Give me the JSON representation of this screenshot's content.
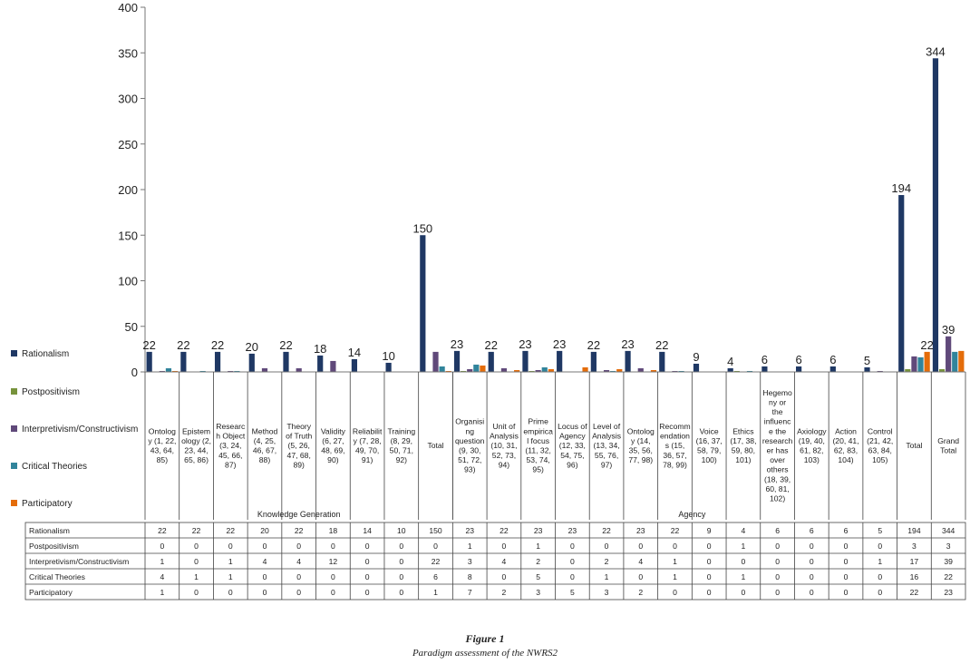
{
  "caption": {
    "label": "Figure 1",
    "title": "Paradigm assessment of the NWRS2"
  },
  "chart_data": {
    "type": "bar",
    "ylim": [
      0,
      400
    ],
    "yticks": [
      0,
      50,
      100,
      150,
      200,
      250,
      300,
      350,
      400
    ],
    "grid": false,
    "legend_position": "left",
    "groups": [
      {
        "label": "Knowledge Generation",
        "count": 9
      },
      {
        "label": "Agency",
        "count": 14
      }
    ],
    "categories": [
      "Ontolog y (1, 22, 43, 64, 85)",
      "Epistem ology (2, 23, 44, 65, 86)",
      "Researc h Object (3, 24, 45, 66, 87)",
      "Method (4, 25, 46, 67, 88)",
      "Theory of Truth (5, 26, 47, 68, 89)",
      "Validity (6, 27, 48, 69, 90)",
      "Reliabilit y (7, 28, 49, 70, 91)",
      "Training (8, 29, 50, 71, 92)",
      "Total",
      "Organisi ng question (9, 30, 51, 72, 93)",
      "Unit of Analysis (10, 31, 52, 73, 94)",
      "Prime empirica l focus (11, 32, 53, 74, 95)",
      "Locus of Agency (12, 33, 54, 75, 96)",
      "Level of Analysis (13, 34, 55, 76, 97)",
      "Ontolog y (14, 35, 56, 77, 98)",
      "Recomm endation s (15, 36, 57, 78, 99)",
      "Voice (16, 37, 58, 79, 100)",
      "Ethics (17, 38, 59, 80, 101)",
      "Hegemo ny or the influenc e the research er has over others (18, 39, 60, 81, 102)",
      "Axiology (19, 40, 61, 82, 103)",
      "Action (20, 41, 62, 83, 104)",
      "Control (21, 42, 63, 84, 105)",
      "Total",
      "Grand Total"
    ],
    "category_lines": [
      [
        "Ontolog",
        "y (1, 22,",
        "43, 64,",
        "85)"
      ],
      [
        "Epistem",
        "ology (2,",
        "23, 44,",
        "65, 86)"
      ],
      [
        "Researc",
        "h Object",
        "(3, 24,",
        "45, 66,",
        "87)"
      ],
      [
        "Method",
        "(4, 25,",
        "46, 67,",
        "88)"
      ],
      [
        "Theory",
        "of Truth",
        "(5, 26,",
        "47, 68,",
        "89)"
      ],
      [
        "Validity",
        "(6, 27,",
        "48, 69,",
        "90)"
      ],
      [
        "Reliabilit",
        "y (7, 28,",
        "49, 70,",
        "91)"
      ],
      [
        "Training",
        "(8, 29,",
        "50, 71,",
        "92)"
      ],
      [
        "Total"
      ],
      [
        "Organisi",
        "ng",
        "question",
        "(9, 30,",
        "51, 72,",
        "93)"
      ],
      [
        "Unit of",
        "Analysis",
        "(10, 31,",
        "52, 73,",
        "94)"
      ],
      [
        "Prime",
        "empirica",
        "l focus",
        "(11, 32,",
        "53, 74,",
        "95)"
      ],
      [
        "Locus of",
        "Agency",
        "(12, 33,",
        "54, 75,",
        "96)"
      ],
      [
        "Level of",
        "Analysis",
        "(13, 34,",
        "55, 76,",
        "97)"
      ],
      [
        "Ontolog",
        "y (14,",
        "35, 56,",
        "77, 98)"
      ],
      [
        "Recomm",
        "endation",
        "s (15,",
        "36, 57,",
        "78, 99)"
      ],
      [
        "Voice",
        "(16, 37,",
        "58, 79,",
        "100)"
      ],
      [
        "Ethics",
        "(17, 38,",
        "59, 80,",
        "101)"
      ],
      [
        "Hegemo",
        "ny or",
        "the",
        "influenc",
        "e the",
        "research",
        "er has",
        "over",
        "others",
        "(18, 39,",
        "60, 81,",
        "102)"
      ],
      [
        "Axiology",
        "(19, 40,",
        "61, 82,",
        "103)"
      ],
      [
        "Action",
        "(20, 41,",
        "62, 83,",
        "104)"
      ],
      [
        "Control",
        "(21, 42,",
        "63, 84,",
        "105)"
      ],
      [
        "Total"
      ],
      [
        "Grand",
        "Total"
      ]
    ],
    "series": [
      {
        "name": "Rationalism",
        "color": "#1f3864",
        "values": [
          22,
          22,
          22,
          20,
          22,
          18,
          14,
          10,
          150,
          23,
          22,
          23,
          23,
          22,
          23,
          22,
          9,
          4,
          6,
          6,
          6,
          5,
          194,
          344
        ]
      },
      {
        "name": "Postpositivism",
        "color": "#77933c",
        "values": [
          0,
          0,
          0,
          0,
          0,
          0,
          0,
          0,
          0,
          1,
          0,
          1,
          0,
          0,
          0,
          0,
          0,
          1,
          0,
          0,
          0,
          0,
          3,
          3
        ]
      },
      {
        "name": "Interpretivism/Constructivism",
        "color": "#60497a",
        "values": [
          1,
          0,
          1,
          4,
          4,
          12,
          0,
          0,
          22,
          3,
          4,
          2,
          0,
          2,
          4,
          1,
          0,
          0,
          0,
          0,
          0,
          1,
          17,
          39
        ]
      },
      {
        "name": "Critical Theories",
        "color": "#31849b",
        "values": [
          4,
          1,
          1,
          0,
          0,
          0,
          0,
          0,
          6,
          8,
          0,
          5,
          0,
          1,
          0,
          1,
          0,
          1,
          0,
          0,
          0,
          0,
          16,
          22
        ]
      },
      {
        "name": "Participatory",
        "color": "#e46c0a",
        "values": [
          1,
          0,
          0,
          0,
          0,
          0,
          0,
          0,
          1,
          7,
          2,
          3,
          5,
          3,
          2,
          0,
          0,
          0,
          0,
          0,
          0,
          0,
          22,
          23
        ]
      }
    ],
    "bar_labels": [
      {
        "category": 0,
        "series": 0,
        "text": "22"
      },
      {
        "category": 1,
        "series": 0,
        "text": "22"
      },
      {
        "category": 2,
        "series": 0,
        "text": "22"
      },
      {
        "category": 3,
        "series": 0,
        "text": "20"
      },
      {
        "category": 4,
        "series": 0,
        "text": "22"
      },
      {
        "category": 5,
        "series": 0,
        "text": "18"
      },
      {
        "category": 6,
        "series": 0,
        "text": "14"
      },
      {
        "category": 7,
        "series": 0,
        "text": "10"
      },
      {
        "category": 8,
        "series": 0,
        "text": "150"
      },
      {
        "category": 9,
        "series": 0,
        "text": "23"
      },
      {
        "category": 10,
        "series": 0,
        "text": "22"
      },
      {
        "category": 11,
        "series": 0,
        "text": "23"
      },
      {
        "category": 12,
        "series": 0,
        "text": "23"
      },
      {
        "category": 13,
        "series": 0,
        "text": "22"
      },
      {
        "category": 14,
        "series": 0,
        "text": "23"
      },
      {
        "category": 15,
        "series": 0,
        "text": "22"
      },
      {
        "category": 16,
        "series": 0,
        "text": "9"
      },
      {
        "category": 17,
        "series": 0,
        "text": "4"
      },
      {
        "category": 18,
        "series": 0,
        "text": "6"
      },
      {
        "category": 19,
        "series": 0,
        "text": "6"
      },
      {
        "category": 20,
        "series": 0,
        "text": "6"
      },
      {
        "category": 21,
        "series": 0,
        "text": "5"
      },
      {
        "category": 22,
        "series": 0,
        "text": "194"
      },
      {
        "category": 22,
        "series": 4,
        "text": "22"
      },
      {
        "category": 23,
        "series": 0,
        "text": "344"
      },
      {
        "category": 23,
        "series": 2,
        "text": "39"
      }
    ]
  }
}
